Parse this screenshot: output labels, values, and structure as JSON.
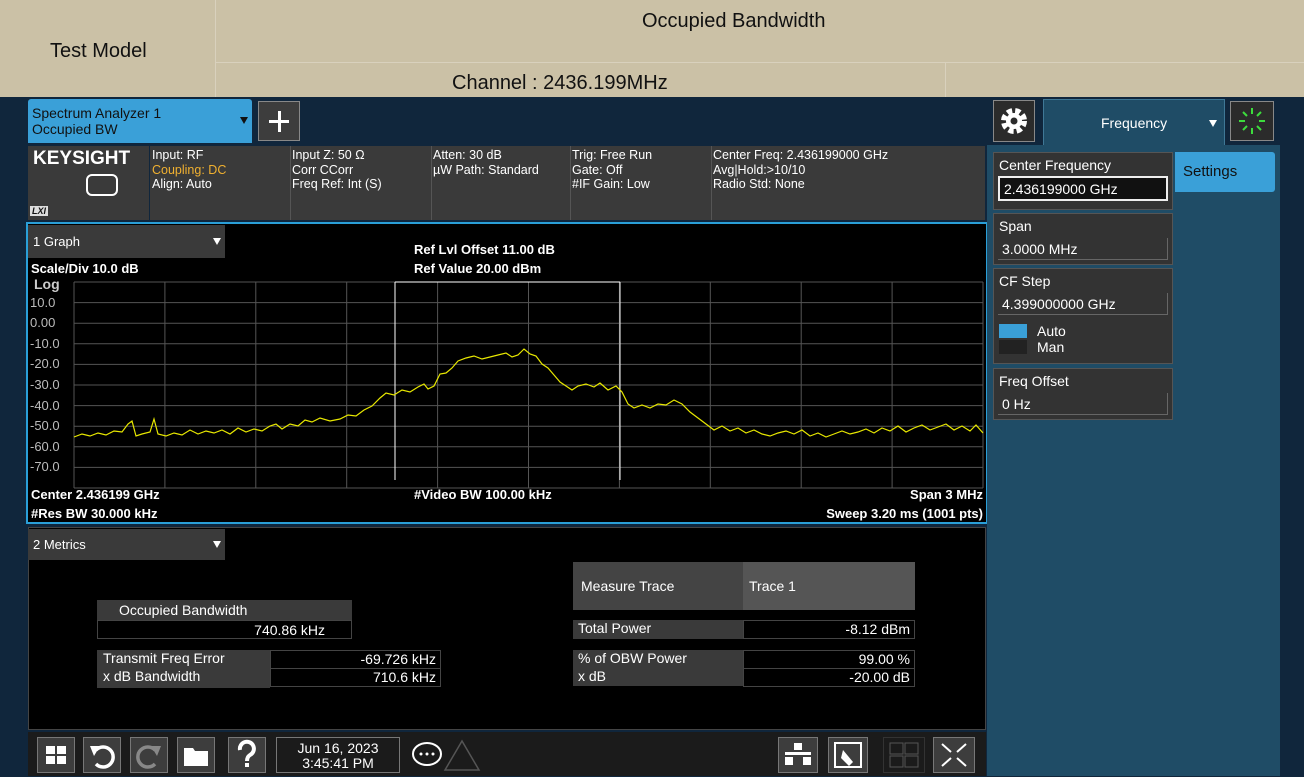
{
  "header": {
    "left": "Test Model",
    "title": "Occupied Bandwidth",
    "channel": "Channel : 2436.199MHz"
  },
  "tabs": {
    "measurement": [
      "Spectrum Analyzer 1",
      "Occupied BW"
    ],
    "menu": "Frequency"
  },
  "brand": {
    "logo": "KEYSIGHT",
    "lxi": "LXI"
  },
  "status": [
    [
      "Input: RF",
      "Coupling: DC",
      "Align: Auto"
    ],
    [
      "Input Z: 50 Ω",
      "Corr CCorr",
      "Freq Ref: Int (S)"
    ],
    [
      "Atten: 30 dB",
      "µW Path: Standard"
    ],
    [
      "Trig: Free Run",
      "Gate: Off",
      "#IF Gain: Low"
    ],
    [
      "Center Freq: 2.436199000 GHz",
      "Avg|Hold:>10/10",
      "Radio Std: None"
    ]
  ],
  "graph": {
    "window": "1 Graph",
    "scale": "Scale/Div 10.0 dB",
    "log": "Log",
    "ref_offset": "Ref Lvl Offset 11.00 dB",
    "ref_value": "Ref Value 20.00 dBm",
    "y_labels": [
      "10.0",
      "0.00",
      "-10.0",
      "-20.0",
      "-30.0",
      "-40.0",
      "-50.0",
      "-60.0",
      "-70.0"
    ],
    "center": "Center 2.436199 GHz",
    "res_bw": "#Res BW 30.000 kHz",
    "video_bw": "#Video BW 100.00 kHz",
    "span": "Span 3 MHz",
    "sweep": "Sweep 3.20 ms (1001 pts)"
  },
  "metrics": {
    "window": "2 Metrics",
    "obw_label": "Occupied Bandwidth",
    "obw_value": "740.86 kHz",
    "left_rows": [
      [
        "Transmit Freq Error",
        "-69.726 kHz"
      ],
      [
        "x dB Bandwidth",
        "710.6 kHz"
      ]
    ],
    "measure_trace": [
      "Measure Trace",
      "Trace 1"
    ],
    "right_rows": [
      [
        "Total Power",
        "-8.12 dBm"
      ],
      [
        "% of OBW Power",
        "99.00 %"
      ],
      [
        "x dB",
        "-20.00 dB"
      ]
    ]
  },
  "taskbar": {
    "date": "Jun 16, 2023",
    "time": "3:45:41 PM"
  },
  "panel": {
    "tab": "Settings",
    "items": [
      {
        "label": "Center Frequency",
        "value": "2.436199000 GHz"
      },
      {
        "label": "Span",
        "value": "3.0000 MHz"
      },
      {
        "label": "CF Step",
        "value": "4.399000000 GHz",
        "options": [
          "Auto",
          "Man"
        ]
      },
      {
        "label": "Freq Offset",
        "value": "0 Hz"
      }
    ]
  }
}
